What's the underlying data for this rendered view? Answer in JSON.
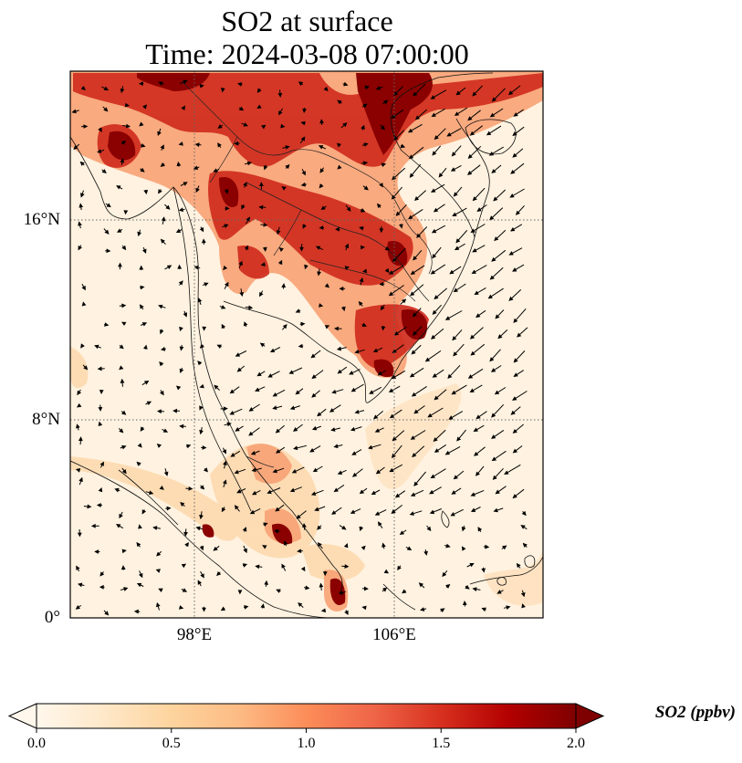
{
  "title": {
    "line1": "SO2 at surface",
    "line2": "Time: 2024-03-08 07:00:00"
  },
  "map": {
    "lat_labels": [
      "16°N",
      "8°N",
      "0°"
    ],
    "lon_labels": [
      "98°E",
      "106°E"
    ],
    "gridlines": "dotted",
    "colormap": "OrRd"
  },
  "colorbar": {
    "label": "SO2 (ppbv)",
    "ticks": [
      "0.0",
      "0.5",
      "1.0",
      "1.5",
      "2.0"
    ],
    "range": [
      0.0,
      2.0
    ],
    "extend": "both",
    "colors": [
      "#fff7ec",
      "#fee8c8",
      "#fdd49e",
      "#fdbb84",
      "#fc8d59",
      "#ef6548",
      "#d7301f",
      "#b30000",
      "#7f0000"
    ]
  }
}
